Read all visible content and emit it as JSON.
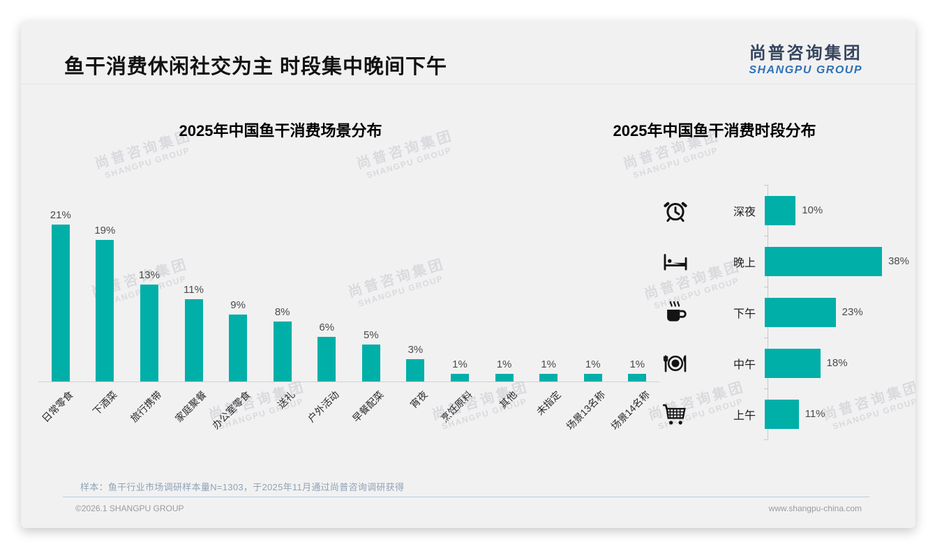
{
  "page": {
    "title": "鱼干消费休闲社交为主 时段集中晚间下午",
    "logo": {
      "cn": "尚普咨询集团",
      "en": "SHANGPU GROUP"
    },
    "watermark": {
      "line1": "尚普咨询集团",
      "line2": "SHANGPU GROUP"
    },
    "note": "样本：鱼干行业市场调研样本量N=1303，于2025年11月通过尚普咨询调研获得",
    "footer": {
      "left": "©2026.1 SHANGPU GROUP",
      "right": "www.shangpu-china.com"
    },
    "colors": {
      "bar_teal": "#00AFA8",
      "logo_cn": "#36455E",
      "logo_en": "#2E71B8",
      "slide_bg": "#F1F1F2"
    }
  },
  "chart_data": [
    {
      "type": "bar",
      "orientation": "vertical",
      "title": "2025年中国鱼干消费场景分布",
      "categories": [
        "日常零食",
        "下酒菜",
        "旅行携带",
        "家庭聚餐",
        "办公室零食",
        "送礼",
        "户外活动",
        "早餐配菜",
        "宵夜",
        "烹饪原料",
        "其他",
        "未指定",
        "场景13名称",
        "场景14名称"
      ],
      "values": [
        21,
        19,
        13,
        11,
        9,
        8,
        6,
        5,
        3,
        1,
        1,
        1,
        1,
        1
      ],
      "unit": "%",
      "bar_color": "#00AFA8",
      "ylim": [
        0,
        22.4
      ],
      "grid": false,
      "legend": "none"
    },
    {
      "type": "bar",
      "orientation": "horizontal",
      "title": "2025年中国鱼干消费时段分布",
      "categories": [
        "深夜",
        "晚上",
        "下午",
        "中午",
        "上午"
      ],
      "values": [
        10,
        38,
        23,
        18,
        11
      ],
      "icons": [
        "alarm-clock",
        "bed",
        "coffee",
        "dinner-plate",
        "shopping-cart"
      ],
      "unit": "%",
      "bar_color": "#00AFA8",
      "xlim": [
        0,
        40
      ],
      "grid": false,
      "legend": "none"
    }
  ]
}
